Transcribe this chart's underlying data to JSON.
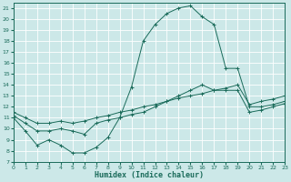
{
  "background_color": "#cce8e8",
  "grid_color": "#b8d8d8",
  "line_color": "#1a6b5a",
  "xlim": [
    0,
    23
  ],
  "ylim": [
    7,
    21.5
  ],
  "xticks": [
    0,
    1,
    2,
    3,
    4,
    5,
    6,
    7,
    8,
    9,
    10,
    11,
    12,
    13,
    14,
    15,
    16,
    17,
    18,
    19,
    20,
    21,
    22,
    23
  ],
  "yticks": [
    7,
    8,
    9,
    10,
    11,
    12,
    13,
    14,
    15,
    16,
    17,
    18,
    19,
    20,
    21
  ],
  "xlabel": "Humidex (Indice chaleur)",
  "s1_x": [
    0,
    1,
    2,
    3,
    4,
    5,
    6,
    7,
    8,
    9,
    10,
    11,
    12,
    13,
    14,
    15,
    16,
    17,
    18,
    19,
    20,
    21,
    22,
    23
  ],
  "s1_y": [
    11.0,
    9.8,
    8.5,
    9.0,
    8.5,
    7.8,
    7.8,
    8.3,
    9.2,
    11.0,
    13.8,
    18.0,
    19.5,
    20.5,
    21.0,
    21.2,
    20.2,
    19.5,
    15.5,
    15.5,
    12.0,
    12.0,
    12.2,
    12.5
  ],
  "s2_x": [
    0,
    1,
    2,
    3,
    4,
    5,
    6,
    7,
    8,
    9,
    10,
    11,
    12,
    13,
    14,
    15,
    16,
    17,
    18,
    19,
    20,
    21,
    22,
    23
  ],
  "s2_y": [
    11.2,
    10.5,
    9.8,
    9.8,
    10.0,
    9.8,
    9.5,
    10.5,
    10.8,
    11.0,
    11.3,
    11.5,
    12.0,
    12.5,
    13.0,
    13.5,
    14.0,
    13.5,
    13.5,
    13.5,
    11.5,
    11.7,
    12.0,
    12.3
  ],
  "s3_x": [
    0,
    1,
    2,
    3,
    4,
    5,
    6,
    7,
    8,
    9,
    10,
    11,
    12,
    13,
    14,
    15,
    16,
    17,
    18,
    19,
    20,
    21,
    22,
    23
  ],
  "s3_y": [
    11.5,
    11.0,
    10.5,
    10.5,
    10.7,
    10.5,
    10.7,
    11.0,
    11.2,
    11.5,
    11.7,
    12.0,
    12.2,
    12.5,
    12.8,
    13.0,
    13.2,
    13.5,
    13.7,
    14.0,
    12.2,
    12.5,
    12.7,
    13.0
  ]
}
